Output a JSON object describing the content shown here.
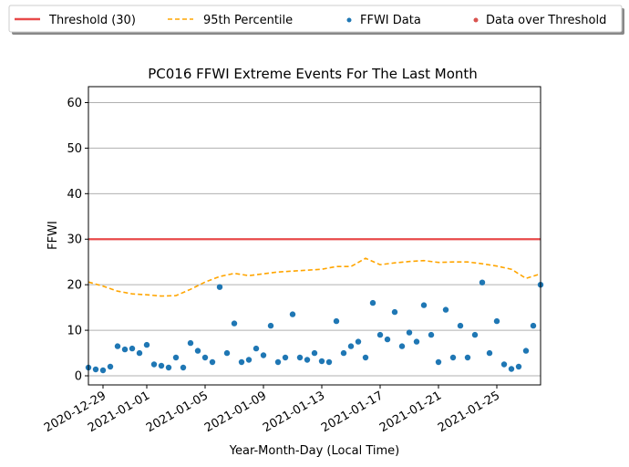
{
  "chart_data": {
    "type": "scatter",
    "title": "PC016 FFWI Extreme Events For The Last Month",
    "xlabel": "Year-Month-Day (Local Time)",
    "ylabel": "FFWI",
    "xlim": [
      "2020-12-28",
      "2021-01-28"
    ],
    "ylim": [
      -2,
      63.5
    ],
    "grid": "horizontal",
    "legend_position": "top",
    "x_tick_labels": [
      "2020-12-29",
      "2021-01-01",
      "2021-01-05",
      "2021-01-09",
      "2021-01-13",
      "2021-01-17",
      "2021-01-21",
      "2021-01-25"
    ],
    "y_ticks": [
      0,
      10,
      20,
      30,
      40,
      50,
      60
    ],
    "threshold": {
      "name": "Threshold (30)",
      "value": 30,
      "color": "#e84a4a"
    },
    "percentile_95": {
      "name": "95th Percentile",
      "color": "#ffa500",
      "x": [
        "2020-12-28",
        "2020-12-29",
        "2020-12-30",
        "2020-12-31",
        "2021-01-01",
        "2021-01-02",
        "2021-01-03",
        "2021-01-04",
        "2021-01-05",
        "2021-01-06",
        "2021-01-07",
        "2021-01-08",
        "2021-01-09",
        "2021-01-10",
        "2021-01-11",
        "2021-01-12",
        "2021-01-13",
        "2021-01-14",
        "2021-01-15",
        "2021-01-16",
        "2021-01-17",
        "2021-01-18",
        "2021-01-19",
        "2021-01-20",
        "2021-01-21",
        "2021-01-22",
        "2021-01-23",
        "2021-01-24",
        "2021-01-25",
        "2021-01-26",
        "2021-01-27",
        "2021-01-28"
      ],
      "y": [
        20.6,
        19.7,
        18.6,
        18.0,
        17.8,
        17.5,
        17.6,
        19.0,
        20.6,
        21.8,
        22.5,
        22.0,
        22.4,
        22.8,
        23.0,
        23.2,
        23.4,
        24.0,
        24.0,
        25.8,
        24.4,
        24.8,
        25.1,
        25.3,
        24.9,
        25.0,
        25.0,
        24.6,
        24.1,
        23.4,
        21.4,
        22.4
      ]
    },
    "ffwi_data": {
      "name": "FFWI Data",
      "color": "#1f77b4",
      "x": [
        "2020-12-28",
        "2020-12-28T12:00",
        "2020-12-29",
        "2020-12-29T12:00",
        "2020-12-30",
        "2020-12-30T12:00",
        "2020-12-31",
        "2020-12-31T12:00",
        "2021-01-01",
        "2021-01-01T12:00",
        "2021-01-02",
        "2021-01-02T12:00",
        "2021-01-03",
        "2021-01-03T12:00",
        "2021-01-04",
        "2021-01-04T12:00",
        "2021-01-05",
        "2021-01-05T12:00",
        "2021-01-06",
        "2021-01-06T12:00",
        "2021-01-07",
        "2021-01-07T12:00",
        "2021-01-08",
        "2021-01-08T12:00",
        "2021-01-09",
        "2021-01-09T12:00",
        "2021-01-10",
        "2021-01-10T12:00",
        "2021-01-11",
        "2021-01-11T12:00",
        "2021-01-12",
        "2021-01-12T12:00",
        "2021-01-13",
        "2021-01-13T12:00",
        "2021-01-14",
        "2021-01-14T12:00",
        "2021-01-15",
        "2021-01-15T12:00",
        "2021-01-16",
        "2021-01-16T12:00",
        "2021-01-17",
        "2021-01-17T12:00",
        "2021-01-18",
        "2021-01-18T12:00",
        "2021-01-19",
        "2021-01-19T12:00",
        "2021-01-20",
        "2021-01-20T12:00",
        "2021-01-21",
        "2021-01-21T12:00",
        "2021-01-22",
        "2021-01-22T12:00",
        "2021-01-23",
        "2021-01-23T12:00",
        "2021-01-24",
        "2021-01-24T12:00",
        "2021-01-25",
        "2021-01-25T12:00",
        "2021-01-26",
        "2021-01-26T12:00",
        "2021-01-27",
        "2021-01-27T12:00",
        "2021-01-28"
      ],
      "y": [
        1.8,
        1.4,
        1.2,
        2.0,
        6.5,
        5.8,
        6.0,
        5.0,
        6.8,
        2.5,
        2.2,
        1.8,
        4.0,
        1.8,
        7.2,
        5.5,
        4.0,
        3.0,
        19.5,
        5.0,
        11.5,
        3.0,
        3.5,
        6.0,
        4.5,
        11.0,
        3.0,
        4.0,
        13.5,
        4.0,
        3.5,
        5.0,
        3.2,
        3.0,
        12.0,
        5.0,
        6.5,
        7.5,
        4.0,
        16.0,
        9.0,
        8.0,
        14.0,
        6.5,
        9.5,
        7.5,
        15.5,
        9.0,
        3.0,
        14.5,
        4.0,
        11.0,
        4.0,
        9.0,
        20.5,
        5.0,
        12.0,
        2.5,
        1.5,
        2.0,
        5.5,
        11.0,
        20.0
      ]
    },
    "over_threshold": {
      "name": "Data over Threshold",
      "color": "#d9534f"
    }
  }
}
